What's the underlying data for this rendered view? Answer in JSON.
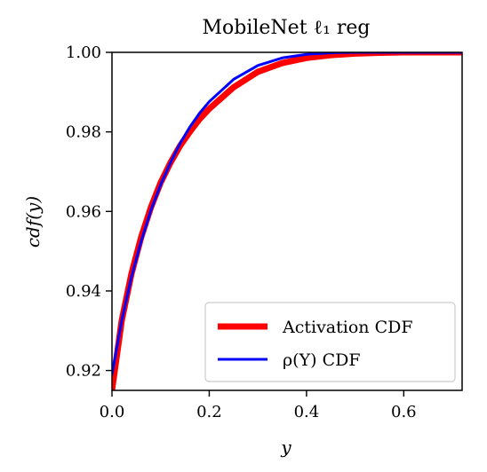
{
  "chart_data": {
    "type": "line",
    "title": "MobileNet ℓ₁ reg",
    "xlabel": "y",
    "ylabel": "cdf(y)",
    "xlim": [
      0.0,
      0.72
    ],
    "ylim": [
      0.915,
      1.0
    ],
    "x_ticks": [
      {
        "value": 0.0,
        "label": "0.0"
      },
      {
        "value": 0.2,
        "label": "0.2"
      },
      {
        "value": 0.4,
        "label": "0.4"
      },
      {
        "value": 0.6,
        "label": "0.6"
      }
    ],
    "y_ticks": [
      {
        "value": 0.92,
        "label": "0.92"
      },
      {
        "value": 0.94,
        "label": "0.94"
      },
      {
        "value": 0.96,
        "label": "0.96"
      },
      {
        "value": 0.98,
        "label": "0.98"
      },
      {
        "value": 1.0,
        "label": "1.00"
      }
    ],
    "grid": false,
    "legend_position": "bottom-right",
    "series": [
      {
        "name": "Activation CDF",
        "color": "#ff0000",
        "x": [
          0.0,
          0.02,
          0.04,
          0.06,
          0.08,
          0.1,
          0.12,
          0.14,
          0.16,
          0.18,
          0.2,
          0.25,
          0.3,
          0.35,
          0.4,
          0.45,
          0.5,
          0.55,
          0.6,
          0.72
        ],
        "y": [
          0.915,
          0.9325,
          0.9443,
          0.9535,
          0.961,
          0.9672,
          0.9722,
          0.9765,
          0.98,
          0.9832,
          0.9858,
          0.9912,
          0.9951,
          0.9973,
          0.9986,
          0.9993,
          0.9997,
          0.9999,
          1.0,
          1.0
        ]
      },
      {
        "name": "ρ(Y) CDF",
        "color": "#0000ff",
        "x": [
          0.0,
          0.02,
          0.04,
          0.06,
          0.08,
          0.1,
          0.12,
          0.14,
          0.16,
          0.18,
          0.2,
          0.25,
          0.3,
          0.35,
          0.4,
          0.45,
          0.5,
          0.6,
          0.72
        ],
        "y": [
          0.919,
          0.9325,
          0.9435,
          0.9525,
          0.9603,
          0.9667,
          0.9722,
          0.9771,
          0.9812,
          0.9847,
          0.9876,
          0.9932,
          0.9967,
          0.9986,
          0.9995,
          0.9999,
          1.0,
          1.0,
          1.0
        ]
      }
    ]
  }
}
